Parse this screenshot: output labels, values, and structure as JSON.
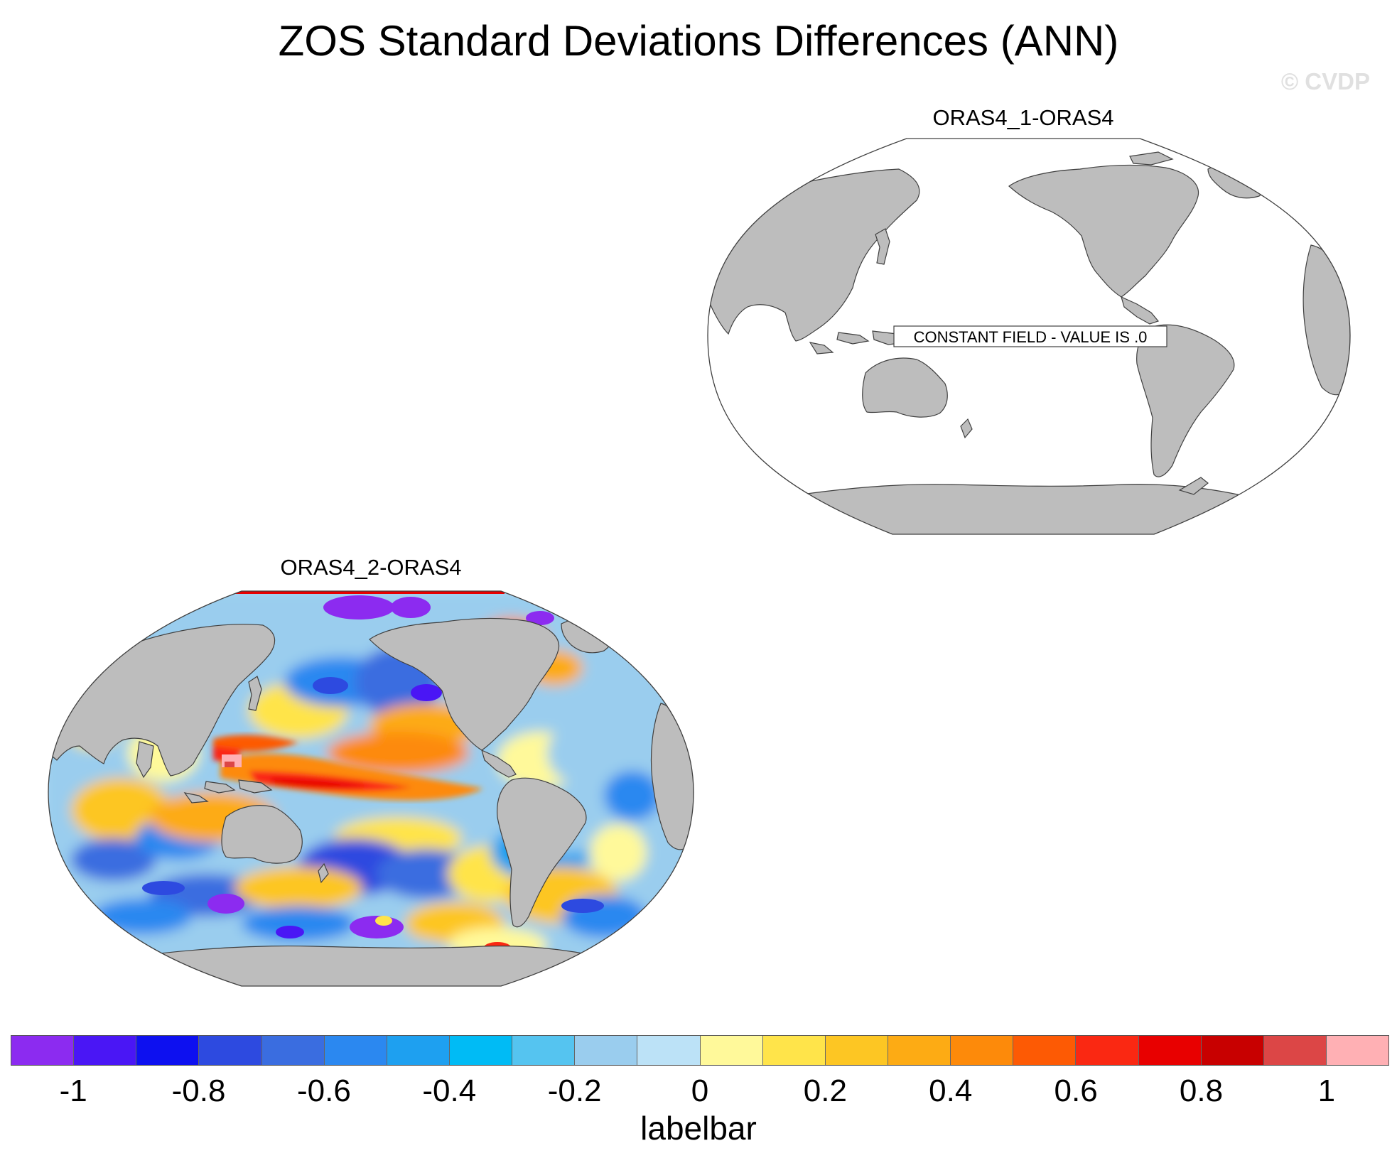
{
  "title": "ZOS Standard Deviations Differences (ANN)",
  "watermark": "© CVDP",
  "panels": [
    {
      "title": "ORAS4_1-ORAS4",
      "note": "CONSTANT FIELD - VALUE IS .0"
    },
    {
      "title": "ORAS4_2-ORAS4"
    }
  ],
  "labelbar": {
    "title": "labelbar",
    "colors": [
      "#8c2bf0",
      "#4a16f5",
      "#0d10f0",
      "#2d4ae0",
      "#3a6de0",
      "#2b88f0",
      "#1ea0f0",
      "#00bbf5",
      "#55c4f0",
      "#9acdee",
      "#bce2f7",
      "#fff99a",
      "#ffe44a",
      "#fdc623",
      "#fdab14",
      "#fd8a0a",
      "#fd5a04",
      "#fa2812",
      "#e80000",
      "#c80000",
      "#dc4646",
      "#ffb0b4"
    ],
    "tick_labels": [
      "-1",
      "-0.8",
      "-0.6",
      "-0.4",
      "-0.2",
      "0",
      "0.2",
      "0.4",
      "0.6",
      "0.8",
      "1"
    ]
  },
  "colors": {
    "land": "#bdbdbd",
    "ocean_blank": "#ffffff",
    "outline": "#404040",
    "watermark": "#e0e0e0"
  }
}
